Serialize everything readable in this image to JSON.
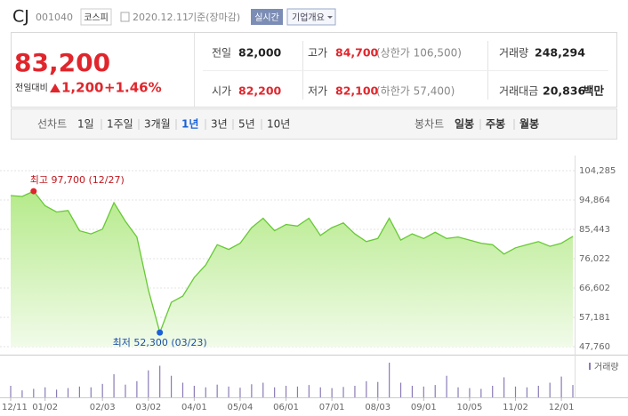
{
  "header": {
    "name": "CJ",
    "code": "001040",
    "market": "코스피",
    "date": "2020.12.11",
    "basis": "기준(장마감)",
    "realtime": "실시간",
    "overview": "기업개요"
  },
  "summary": {
    "price": "83,200",
    "change_label": "전일대비",
    "change": "1,200",
    "change_pct": "+1.46%",
    "rows": [
      [
        {
          "label": "전일",
          "value": "82,000"
        },
        {
          "label": "고가",
          "value": "84,700",
          "note": "(상한가 106,500)"
        },
        {
          "label": "거래량",
          "value": "248,294"
        }
      ],
      [
        {
          "label": "시가",
          "value": "82,200"
        },
        {
          "label": "저가",
          "value": "82,100",
          "note": "(하한가 57,400)"
        },
        {
          "label": "거래대금",
          "value": "20,836",
          "note": "백만"
        }
      ]
    ]
  },
  "tabs": {
    "line_label": "선차트",
    "line": [
      "1일",
      "1주일",
      "3개월",
      "1년",
      "3년",
      "5년",
      "10년"
    ],
    "candle_label": "봉차트",
    "candle": [
      "일봉",
      "주봉",
      "월봉"
    ]
  },
  "chart_data": {
    "type": "area",
    "categories": [
      "12/11",
      null,
      null,
      "01/02",
      null,
      null,
      null,
      null,
      "02/03",
      null,
      null,
      null,
      "03/02",
      null,
      null,
      null,
      "04/01",
      null,
      null,
      null,
      "05/04",
      null,
      null,
      null,
      "06/01",
      null,
      null,
      null,
      "07/01",
      null,
      null,
      null,
      "08/03",
      null,
      null,
      null,
      "09/01",
      null,
      null,
      null,
      "10/05",
      null,
      null,
      null,
      "11/02",
      null,
      null,
      null,
      "12/01",
      null
    ],
    "values": [
      96300,
      96000,
      97700,
      93000,
      91000,
      91500,
      85000,
      84000,
      85500,
      94000,
      88000,
      83000,
      66000,
      52300,
      62000,
      64000,
      70000,
      74000,
      80500,
      79000,
      81000,
      86000,
      89000,
      85000,
      87000,
      86500,
      89000,
      83500,
      86000,
      87500,
      84000,
      81500,
      82500,
      89000,
      82000,
      84000,
      82500,
      84500,
      82500,
      83000,
      82000,
      81000,
      80500,
      77500,
      79500,
      80500,
      81500,
      80000,
      81000,
      83200
    ],
    "color": "#67c935",
    "ylim": [
      47760,
      104285
    ],
    "yticks": [
      {
        "value": 47760,
        "label": "47,760"
      },
      {
        "value": 57181,
        "label": "57,181"
      },
      {
        "value": 66602,
        "label": "66,602"
      },
      {
        "value": 76022,
        "label": "76,022"
      },
      {
        "value": 85443,
        "label": "85,443"
      },
      {
        "value": 94864,
        "label": "94,864"
      },
      {
        "value": 104285,
        "label": "104,285"
      }
    ],
    "grid": true,
    "annotations": {
      "high": "최고 97,700 (12/27)",
      "low": "최저 52,300 (03/23)"
    },
    "volume": {
      "name": "거래량",
      "color": "#8a7bb5",
      "values": [
        300000,
        180000,
        220000,
        260000,
        200000,
        240000,
        280000,
        260000,
        350000,
        600000,
        330000,
        420000,
        700000,
        820000,
        560000,
        380000,
        300000,
        260000,
        330000,
        280000,
        250000,
        340000,
        380000,
        260000,
        300000,
        280000,
        320000,
        260000,
        240000,
        270000,
        300000,
        420000,
        400000,
        900000,
        380000,
        300000,
        280000,
        320000,
        560000,
        260000,
        240000,
        220000,
        300000,
        520000,
        280000,
        260000,
        300000,
        380000,
        540000,
        320000
      ]
    }
  }
}
